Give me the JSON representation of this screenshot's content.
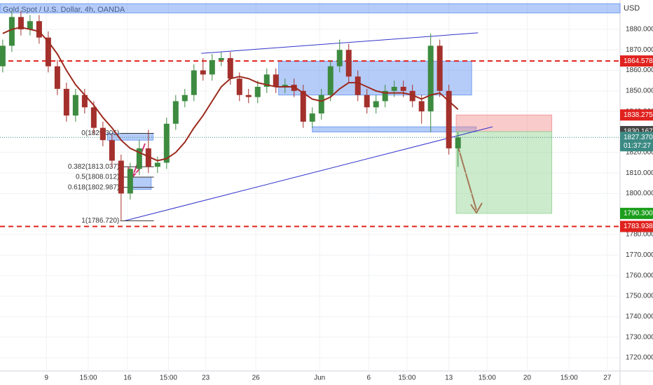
{
  "chart_data": {
    "type": "candlestick",
    "title": "Gold Spot / U.S. Dollar, 4h, OANDA",
    "currency": "USD",
    "up_color": "#3d8b40",
    "down_color": "#a3302c",
    "ma_color": "#9c2a1e",
    "xlim": [
      -0.3,
      67.8
    ],
    "xticks": [
      {
        "value": 4.8,
        "label": "9"
      },
      {
        "value": 9.4,
        "label": "15:00"
      },
      {
        "value": 13.7,
        "label": "16"
      },
      {
        "value": 18.2,
        "label": "15:00"
      },
      {
        "value": 22.3,
        "label": "23"
      },
      {
        "value": 27.8,
        "label": "26"
      },
      {
        "value": 34.8,
        "label": "Jun"
      },
      {
        "value": 40.2,
        "label": "6"
      },
      {
        "value": 44.4,
        "label": "15:00"
      },
      {
        "value": 49,
        "label": "13"
      },
      {
        "value": 53.2,
        "label": "15:00"
      },
      {
        "value": 57.6,
        "label": "20"
      },
      {
        "value": 62.2,
        "label": "15:00"
      },
      {
        "value": 66.4,
        "label": "27"
      }
    ],
    "ylim": [
      1713.5,
      1894.3
    ],
    "yticks": [
      {
        "value": 1720,
        "label": "1720.000"
      },
      {
        "value": 1730,
        "label": "1730.000"
      },
      {
        "value": 1740,
        "label": "1740.000"
      },
      {
        "value": 1750,
        "label": "1750.000"
      },
      {
        "value": 1760,
        "label": "1760.000"
      },
      {
        "value": 1770,
        "label": "1770.000"
      },
      {
        "value": 1780,
        "label": "1780.000"
      },
      {
        "value": 1800,
        "label": "1800.000"
      },
      {
        "value": 1810,
        "label": "1810.000"
      },
      {
        "value": 1820,
        "label": "1820.000"
      },
      {
        "value": 1840,
        "label": "1840.000"
      },
      {
        "value": 1850,
        "label": "1850.000"
      },
      {
        "value": 1860,
        "label": "1860.000"
      },
      {
        "value": 1870,
        "label": "1870.000"
      },
      {
        "value": 1880,
        "label": "1880.000"
      }
    ],
    "open": [
      1862,
      1872,
      1886,
      1880,
      1884,
      1876,
      1862,
      1851,
      1838,
      1848,
      1842,
      1832,
      1826,
      1816,
      1800,
      1812,
      1822,
      1813,
      1815,
      1834,
      1845,
      1848,
      1860,
      1858,
      1865,
      1866,
      1856,
      1848,
      1847,
      1852,
      1858,
      1852,
      1853,
      1850,
      1835,
      1839,
      1848,
      1862,
      1870,
      1857,
      1848,
      1842,
      1845,
      1850,
      1852,
      1850,
      1845,
      1840,
      1872,
      1850,
      1822
    ],
    "high": [
      1875,
      1889,
      1889,
      1887,
      1887,
      1879,
      1865,
      1854,
      1851,
      1851,
      1845,
      1835,
      1829,
      1819,
      1815,
      1826,
      1831,
      1818,
      1837,
      1848,
      1851,
      1863,
      1866,
      1868,
      1869,
      1869,
      1859,
      1851,
      1855,
      1861,
      1861,
      1856,
      1856,
      1853,
      1842,
      1851,
      1865,
      1875,
      1873,
      1860,
      1851,
      1848,
      1853,
      1855,
      1855,
      1853,
      1848,
      1878,
      1875,
      1853,
      1830
    ],
    "low": [
      1859,
      1869,
      1877,
      1877,
      1873,
      1859,
      1848,
      1835,
      1835,
      1839,
      1829,
      1823,
      1813,
      1787,
      1797,
      1809,
      1810,
      1810,
      1812,
      1831,
      1842,
      1845,
      1855,
      1855,
      1862,
      1853,
      1845,
      1844,
      1844,
      1849,
      1849,
      1849,
      1847,
      1832,
      1832,
      1836,
      1845,
      1859,
      1854,
      1845,
      1839,
      1839,
      1842,
      1847,
      1847,
      1842,
      1834,
      1830,
      1847,
      1819,
      1813
    ],
    "close": [
      1872,
      1886,
      1880,
      1884,
      1876,
      1862,
      1851,
      1838,
      1848,
      1842,
      1832,
      1826,
      1816,
      1800,
      1812,
      1822,
      1813,
      1815,
      1834,
      1845,
      1848,
      1860,
      1858,
      1865,
      1866,
      1856,
      1848,
      1847,
      1852,
      1858,
      1852,
      1853,
      1850,
      1835,
      1839,
      1848,
      1862,
      1870,
      1857,
      1848,
      1842,
      1845,
      1850,
      1852,
      1850,
      1845,
      1840,
      1872,
      1850,
      1822,
      1827.37
    ],
    "ma": [
      1878,
      1880,
      1881,
      1880,
      1879,
      1874,
      1868,
      1860,
      1853,
      1848,
      1843,
      1837,
      1832,
      1826,
      1822,
      1820,
      1818,
      1816,
      1817,
      1820,
      1825,
      1832,
      1838,
      1845,
      1852,
      1856,
      1857,
      1856,
      1854,
      1853,
      1852,
      1852,
      1852,
      1849,
      1846,
      1845,
      1847,
      1851,
      1854,
      1854,
      1852,
      1850,
      1849,
      1849,
      1849,
      1848,
      1846,
      1848,
      1849,
      1845,
      1841
    ],
    "zones": [
      {
        "x": [
          -0.3,
          67.8
        ],
        "y": [
          1888,
          1892.5
        ],
        "color": "#5b8def"
      },
      {
        "x": [
          30.3,
          51.5
        ],
        "y": [
          1848,
          1864.5
        ],
        "color": "#5b8def"
      },
      {
        "x": [
          34,
          52
        ],
        "y": [
          1830,
          1832.5
        ],
        "color": "#5b8def"
      },
      {
        "x": [
          11.5,
          16.5
        ],
        "y": [
          1826,
          1829.3
        ],
        "color": "#5b8def"
      },
      {
        "x": [
          13.8,
          16.3
        ],
        "y": [
          1802,
          1808
        ],
        "color": "#5b8def"
      },
      {
        "x": [
          49.8,
          60.3
        ],
        "y": [
          1830.167,
          1838.275
        ],
        "color": "#f28b8b"
      },
      {
        "x": [
          49.8,
          60.3
        ],
        "y": [
          1790.3,
          1830.167
        ],
        "color": "#8fd18f"
      }
    ],
    "trendlines": [
      {
        "x": [
          13.4,
          53.8
        ],
        "y": [
          1786.72,
          1832.5
        ],
        "color": "#3333cc"
      },
      {
        "x": [
          21.8,
          52.2
        ],
        "y": [
          1868.3,
          1878.3
        ],
        "color": "#3333cc"
      }
    ],
    "levels": [
      {
        "value": 1864.578,
        "label": "1864.578",
        "color": "#e0221e",
        "dashed": true
      },
      {
        "value": 1838.275,
        "label": "1838.275",
        "color": "#e0221e",
        "dashed": false
      },
      {
        "value": 1830.167,
        "label": "1830.167",
        "color": "#444444",
        "dashed": false
      },
      {
        "value": 1790.3,
        "label": "1790.300",
        "color": "#1b9e1b",
        "dashed": false
      },
      {
        "value": 1783.938,
        "label": "1783.938",
        "color": "#e0221e",
        "dashed": true
      }
    ],
    "last_price": {
      "value": 1827.37,
      "label": "1827.370",
      "countdown": "01:37:27",
      "color": "#3c8a84"
    },
    "fib": [
      {
        "value": 1829.305,
        "label": "0(1829.305)"
      },
      {
        "value": 1813.037,
        "label": "0.382(1813.037)"
      },
      {
        "value": 1808.012,
        "label": "0.5(1808.012)"
      },
      {
        "value": 1802.987,
        "label": "0.618(1802.987)"
      },
      {
        "value": 1786.72,
        "label": "1(1786.720)"
      }
    ]
  }
}
